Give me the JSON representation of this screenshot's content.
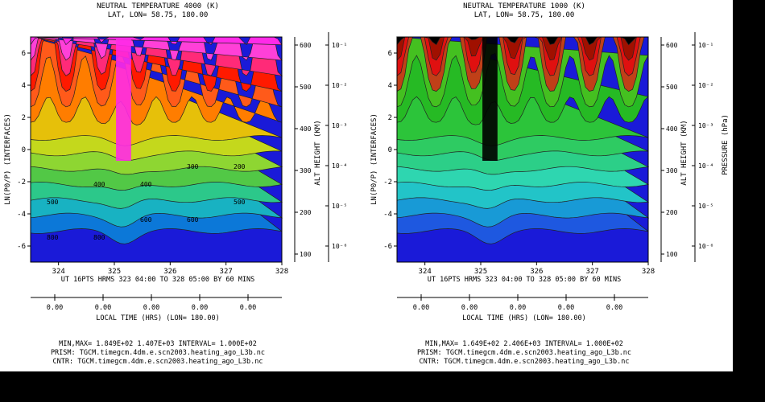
{
  "chart_data": [
    {
      "type": "heatmap",
      "title": "NEUTRAL TEMPERATURE 4000 (K)",
      "subtitle": "LAT, LON= 58.75, 180.00",
      "ylabel": "LN(P0/P) (INTERFACES)",
      "y_ticks": [
        "6",
        "4",
        "2",
        "0",
        "-2",
        "-4",
        "-6"
      ],
      "ylim": [
        -7,
        7
      ],
      "x_ticks": [
        "324",
        "325",
        "326",
        "327",
        "328"
      ],
      "xlim": [
        323.5,
        328
      ],
      "xlabel": "UT 16PTS HRMS 323 04:00 TO 328 05:00 BY 60 MINS",
      "right_axis_1": {
        "label": "ALT HEIGHT (KM)",
        "ticks": [
          "600",
          "500",
          "400",
          "300",
          "200",
          "100"
        ]
      },
      "right_axis_2": {
        "label": "",
        "ticks": [
          "10⁻¹",
          "10⁻²",
          "10⁻³",
          "10⁻⁴",
          "10⁻⁵",
          "10⁻⁶"
        ]
      },
      "local_time": {
        "label": "LOCAL TIME (HRS) (LON= 180.00)",
        "ticks": [
          "0.00",
          "0.00",
          "0.00",
          "0.00",
          "0.00"
        ]
      },
      "contour_labels": [
        "800",
        "800",
        "600",
        "600",
        "500",
        "500",
        "400",
        "400",
        "300",
        "200"
      ],
      "footer": [
        "MIN,MAX= 1.849E+02 1.407E+03 INTERVAL= 1.000E+02",
        "PRISM: TGCM.timegcm.4dm.e.scn2003.heating_ago_L3b.nc",
        "CNTR: TGCM.timegcm.4dm.e.scn2003.heating_ago_L3b.nc"
      ]
    },
    {
      "type": "heatmap",
      "title": "NEUTRAL TEMPERATURE 1000 (K)",
      "subtitle": "LAT, LON= 58.75, 180.00",
      "ylabel": "LN(P0/P) (INTERFACES)",
      "y_ticks": [
        "6",
        "4",
        "2",
        "0",
        "-2",
        "-4",
        "-6"
      ],
      "ylim": [
        -7,
        7
      ],
      "x_ticks": [
        "324",
        "325",
        "326",
        "327",
        "328"
      ],
      "xlim": [
        323.5,
        328
      ],
      "xlabel": "UT 16PTS HRMS 323 04:00 TO 328 05:00 BY 60 MINS",
      "right_axis_1": {
        "label": "ALT HEIGHT (KM)",
        "ticks": [
          "600",
          "500",
          "400",
          "300",
          "200",
          "100"
        ]
      },
      "right_axis_2": {
        "label": "PRESSURE (hPa)",
        "ticks": [
          "10⁻¹",
          "10⁻²",
          "10⁻³",
          "10⁻⁴",
          "10⁻⁵",
          "10⁻⁶"
        ]
      },
      "local_time": {
        "label": "LOCAL TIME (HRS) (LON= 180.00)",
        "ticks": [
          "0.00",
          "0.00",
          "0.00",
          "0.00",
          "0.00"
        ]
      },
      "contour_labels": [],
      "footer": [
        "MIN,MAX= 1.649E+02 2.406E+03 INTERVAL= 1.000E+02",
        "PRISM: TGCM.timegcm.4dm.e.scn2003.heating_ago_L3b.nc",
        "CNTR: TGCM.timegcm.4dm.e.scn2003.heating_ago_L3b.nc"
      ]
    }
  ],
  "colors": {
    "panel1_bands": [
      "#1a1ad8",
      "#0c78d8",
      "#18b2c2",
      "#2cc88a",
      "#52c846",
      "#8ed632",
      "#c4d81c",
      "#e6c00a",
      "#ff7d00",
      "#ff5a1a",
      "#ff1a00",
      "#ff2a78",
      "#ff40d8",
      "#ff2ae8"
    ],
    "panel2_bands": [
      "#1a1ad8",
      "#1e58e0",
      "#189ad6",
      "#22c4c8",
      "#2ed6b0",
      "#2ccf88",
      "#2ecb62",
      "#2cc43a",
      "#26ba24",
      "#44c020",
      "#c04018",
      "#e01010",
      "#a01000",
      "#000000"
    ]
  }
}
